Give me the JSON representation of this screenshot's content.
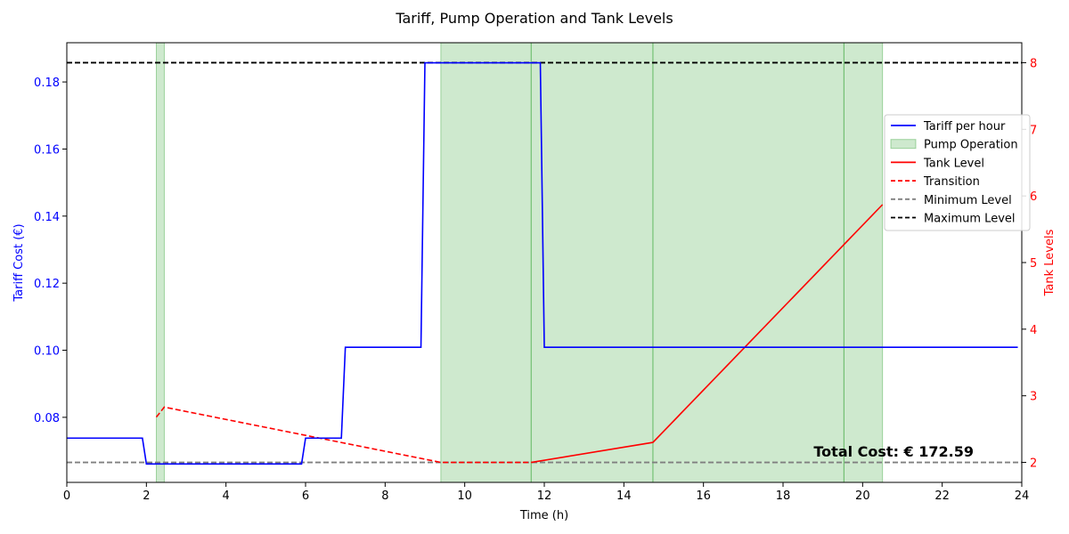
{
  "chart_data": {
    "type": "line",
    "title": "Tariff, Pump Operation and Tank Levels",
    "xlabel": "Time (h)",
    "ylabel_left": "Tariff Cost (€)",
    "ylabel_right": "Tank Levels",
    "xlim": [
      0,
      24
    ],
    "ylim_left": [
      0.0606,
      0.1917
    ],
    "ylim_right": [
      1.7,
      8.3
    ],
    "x_ticks": [
      "0",
      "2",
      "4",
      "6",
      "8",
      "10",
      "12",
      "14",
      "16",
      "18",
      "20",
      "22",
      "24"
    ],
    "y_left_ticks": [
      "0.08",
      "0.10",
      "0.12",
      "0.14",
      "0.16",
      "0.18"
    ],
    "y_right_ticks": [
      "2",
      "3",
      "4",
      "5",
      "6",
      "7",
      "8"
    ],
    "grid": false,
    "legend_position": "center-right",
    "legend": [
      "Tariff per hour",
      "Pump Operation",
      "Tank Level",
      "Transition",
      "Minimum Level",
      "Maximum Level"
    ],
    "colors": {
      "tariff": "#0000ff",
      "pump": "#2ca02c",
      "tank": "#ff0000",
      "transition": "#ff0000",
      "minimum": "#808080",
      "maximum": "#000000"
    },
    "tariff": {
      "x": [
        0,
        1.9,
        2.0,
        5.9,
        6.0,
        6.9,
        7.0,
        8.9,
        9.0,
        11.9,
        12.0,
        23.9
      ],
      "y": [
        0.0738,
        0.0738,
        0.0661,
        0.0661,
        0.0738,
        0.0738,
        0.1009,
        0.1009,
        0.1857,
        0.1857,
        0.1009,
        0.1009
      ]
    },
    "pump_operation": [
      {
        "start": 2.25,
        "end": 2.45
      },
      {
        "start": 9.4,
        "end": 11.67
      },
      {
        "start": 11.67,
        "end": 14.73
      },
      {
        "start": 14.73,
        "end": 19.53
      },
      {
        "start": 19.53,
        "end": 20.5
      }
    ],
    "tank_level": {
      "x": [
        11.67,
        14.73,
        20.5
      ],
      "y": [
        2.0,
        2.3,
        5.87
      ]
    },
    "transition": {
      "x": [
        2.25,
        2.45,
        9.4,
        11.67
      ],
      "y": [
        2.68,
        2.83,
        2.0,
        2.0
      ]
    },
    "minimum_level": 2,
    "maximum_level": 8,
    "annotation": "Total Cost: € 172.59"
  }
}
